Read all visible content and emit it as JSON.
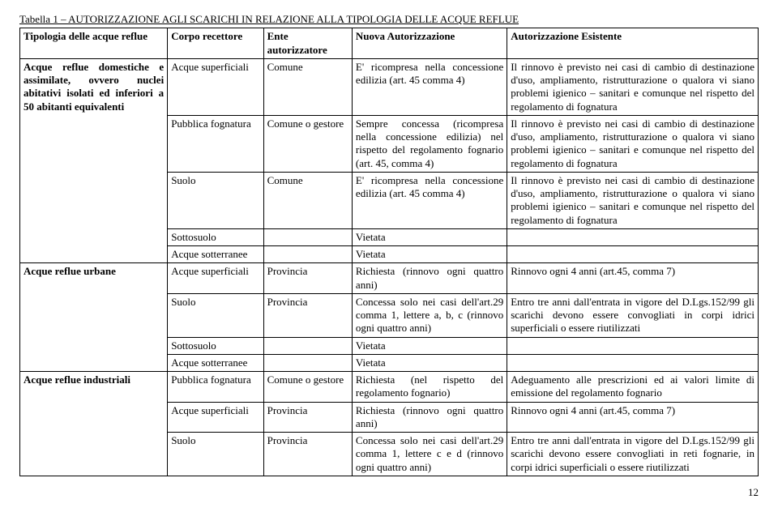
{
  "title": "Tabella 1 – AUTORIZZAZIONE AGLI SCARICHI IN RELAZIONE ALLA TIPOLOGIA DELLE ACQUE REFLUE",
  "headers": {
    "c1": "Tipologia delle acque reflue",
    "c2": "Corpo recettore",
    "c3": "Ente autorizzatore",
    "c4": "Nuova Autorizzazione",
    "c5": "Autorizzazione Esistente"
  },
  "groupA": {
    "label": "Acque reflue domestiche e assimilate, ovvero nuclei abitativi isolati ed inferiori a 50 abitanti equivalenti",
    "rows": [
      {
        "recettore": "Acque superficiali",
        "ente": "Comune",
        "nuova": "E' ricompresa nella concessione edilizia (art. 45 comma 4)",
        "esistente": "Il rinnovo è previsto nei casi di cambio di destinazione d'uso, ampliamento, ristrutturazione o qualora vi siano problemi igienico – sanitari e comunque nel rispetto del regolamento di fognatura"
      },
      {
        "recettore": "Pubblica fognatura",
        "ente": "Comune o gestore",
        "nuova": "Sempre concessa (ricompresa nella concessione edilizia) nel rispetto del regolamento fognario (art. 45, comma 4)",
        "esistente": "Il rinnovo è previsto nei casi di cambio di destinazione d'uso, ampliamento, ristrutturazione o qualora vi siano problemi igienico – sanitari e comunque nel rispetto del regolamento di fognatura"
      },
      {
        "recettore": "Suolo",
        "ente": "Comune",
        "nuova": "E' ricompresa nella concessione edilizia (art. 45 comma 4)",
        "esistente": "Il rinnovo è previsto nei casi di cambio di destinazione d'uso, ampliamento, ristrutturazione o qualora vi siano problemi igienico – sanitari e comunque nel rispetto del regolamento di fognatura"
      },
      {
        "recettore": "Sottosuolo",
        "ente": "",
        "nuova": "Vietata",
        "esistente": ""
      },
      {
        "recettore": "Acque sotterranee",
        "ente": "",
        "nuova": "Vietata",
        "esistente": ""
      }
    ]
  },
  "groupB": {
    "label": "Acque reflue urbane",
    "rows": [
      {
        "recettore": "Acque superficiali",
        "ente": "Provincia",
        "nuova": "Richiesta (rinnovo ogni quattro anni)",
        "esistente": "Rinnovo ogni 4 anni (art.45, comma 7)"
      },
      {
        "recettore": "Suolo",
        "ente": "Provincia",
        "nuova": "Concessa solo nei casi dell'art.29 comma 1, lettere a, b, c (rinnovo ogni quattro anni)",
        "esistente": "Entro tre anni dall'entrata in vigore del D.Lgs.152/99 gli scarichi devono essere convogliati in corpi idrici superficiali o essere riutilizzati"
      },
      {
        "recettore": "Sottosuolo",
        "ente": "",
        "nuova": "Vietata",
        "esistente": ""
      },
      {
        "recettore": "Acque sotterranee",
        "ente": "",
        "nuova": "Vietata",
        "esistente": ""
      }
    ]
  },
  "groupC": {
    "label": "Acque reflue industriali",
    "rows": [
      {
        "recettore": "Pubblica fognatura",
        "ente": "Comune o gestore",
        "nuova": "Richiesta (nel rispetto del regolamento fognario)",
        "esistente": "Adeguamento alle prescrizioni ed ai valori limite di emissione del regolamento fognario"
      },
      {
        "recettore": "Acque superficiali",
        "ente": "Provincia",
        "nuova": "Richiesta (rinnovo ogni quattro anni)",
        "esistente": "Rinnovo ogni 4 anni (art.45, comma 7)"
      },
      {
        "recettore": "Suolo",
        "ente": "Provincia",
        "nuova": "Concessa solo nei casi dell'art.29 comma 1, lettere c e d (rinnovo ogni quattro anni)",
        "esistente": "Entro tre anni dall'entrata in vigore del D.Lgs.152/99 gli scarichi devono essere convogliati in reti fognarie, in corpi idrici superficiali o essere riutilizzati"
      }
    ]
  },
  "page_number": "12"
}
